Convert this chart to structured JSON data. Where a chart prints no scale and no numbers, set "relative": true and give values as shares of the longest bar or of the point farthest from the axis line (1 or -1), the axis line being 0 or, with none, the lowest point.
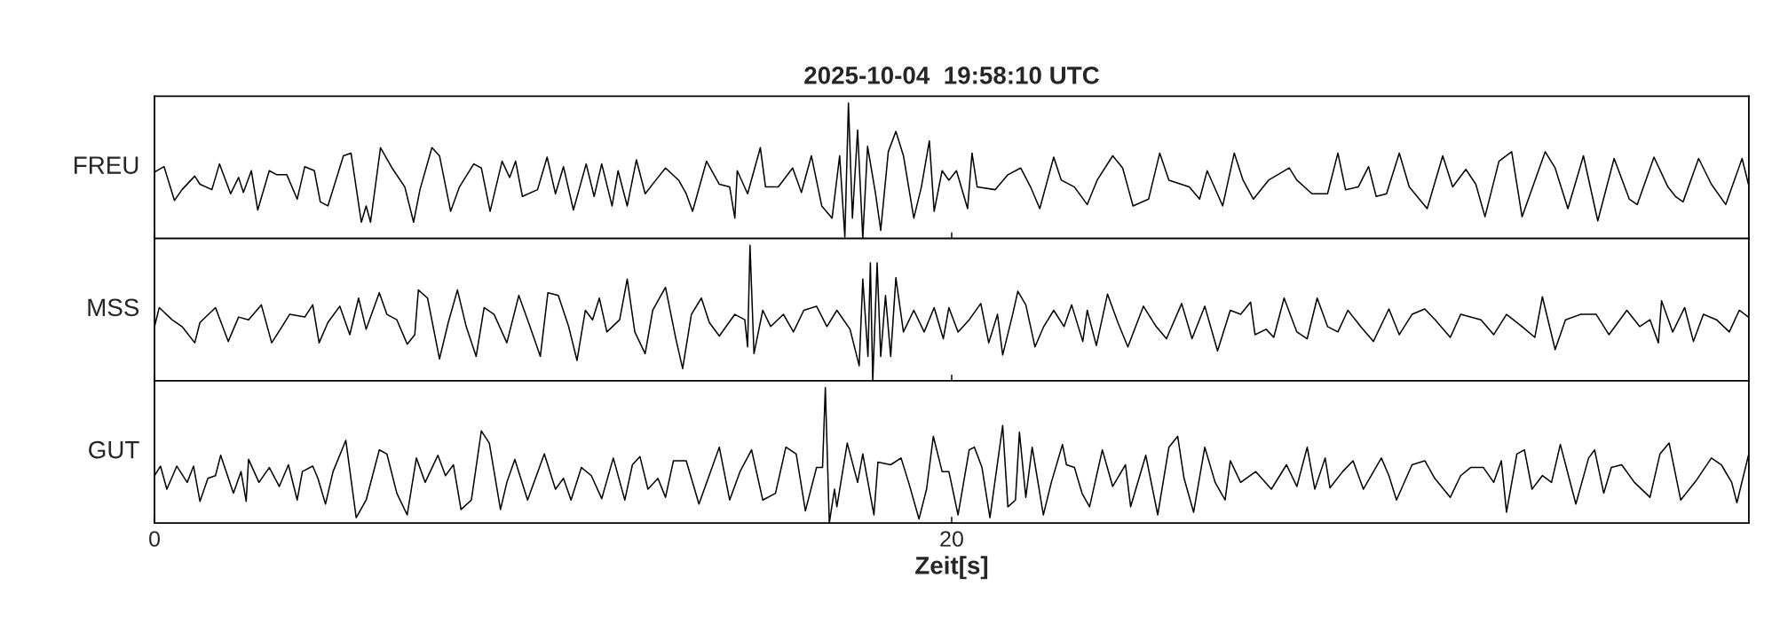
{
  "chart_data": [
    {
      "type": "line",
      "title": "2025-10-04  19:58:10 UTC",
      "ylabel": "FREU",
      "relative": true,
      "xlim": [
        0,
        40
      ],
      "xticks": [
        0,
        20
      ],
      "tick_labels": false,
      "color": "#000000",
      "x": [
        0.0,
        0.24,
        0.5,
        0.69,
        1.01,
        1.14,
        1.44,
        1.63,
        1.91,
        2.11,
        2.23,
        2.43,
        2.59,
        2.88,
        3.07,
        3.32,
        3.58,
        3.77,
        4.01,
        4.16,
        4.35,
        4.74,
        4.93,
        5.19,
        5.31,
        5.42,
        5.67,
        5.96,
        6.28,
        6.5,
        6.66,
        6.96,
        7.15,
        7.43,
        7.65,
        8.01,
        8.2,
        8.42,
        8.72,
        8.91,
        9.06,
        9.23,
        9.61,
        9.85,
        10.06,
        10.26,
        10.51,
        10.83,
        11.03,
        11.22,
        11.48,
        11.63,
        11.86,
        12.09,
        12.31,
        12.63,
        12.82,
        13.15,
        13.34,
        13.5,
        13.85,
        14.17,
        14.43,
        14.56,
        14.62,
        14.88,
        15.2,
        15.33,
        15.65,
        16.01,
        16.23,
        16.48,
        16.74,
        17.0,
        17.19,
        17.32,
        17.41,
        17.51,
        17.64,
        17.77,
        17.89,
        18.09,
        18.22,
        18.41,
        18.6,
        18.79,
        19.05,
        19.24,
        19.44,
        19.56,
        19.76,
        19.93,
        20.12,
        20.4,
        20.51,
        20.64,
        21.09,
        21.41,
        21.73,
        21.98,
        22.21,
        22.56,
        22.75,
        23.08,
        23.4,
        23.65,
        24.04,
        24.29,
        24.55,
        24.94,
        25.22,
        25.45,
        25.96,
        26.22,
        26.41,
        26.8,
        27.09,
        27.31,
        27.57,
        27.95,
        28.47,
        28.66,
        29.04,
        29.43,
        29.69,
        29.88,
        30.2,
        30.46,
        30.65,
        30.91,
        31.23,
        31.48,
        31.93,
        32.32,
        32.57,
        32.9,
        33.15,
        33.38,
        33.73,
        34.05,
        34.31,
        34.89,
        35.14,
        35.46,
        35.85,
        36.21,
        36.62,
        37.0,
        37.2,
        37.62,
        37.97,
        38.16,
        38.35,
        38.74,
        39.06,
        39.42,
        39.83,
        39.99
      ],
      "values": [
        0.49,
        0.53,
        0.28,
        0.36,
        0.46,
        0.4,
        0.36,
        0.55,
        0.33,
        0.45,
        0.34,
        0.5,
        0.21,
        0.5,
        0.47,
        0.47,
        0.29,
        0.53,
        0.5,
        0.27,
        0.24,
        0.61,
        0.63,
        0.12,
        0.24,
        0.12,
        0.67,
        0.52,
        0.38,
        0.12,
        0.36,
        0.67,
        0.61,
        0.2,
        0.38,
        0.55,
        0.52,
        0.2,
        0.57,
        0.45,
        0.57,
        0.31,
        0.36,
        0.6,
        0.33,
        0.53,
        0.21,
        0.55,
        0.31,
        0.55,
        0.24,
        0.5,
        0.24,
        0.58,
        0.33,
        0.45,
        0.52,
        0.43,
        0.33,
        0.2,
        0.57,
        0.4,
        0.38,
        0.15,
        0.5,
        0.33,
        0.67,
        0.38,
        0.38,
        0.52,
        0.34,
        0.61,
        0.24,
        0.15,
        0.61,
        0.01,
        1.0,
        0.15,
        0.8,
        0.0,
        0.68,
        0.33,
        0.06,
        0.64,
        0.79,
        0.61,
        0.15,
        0.38,
        0.72,
        0.2,
        0.5,
        0.43,
        0.5,
        0.22,
        0.63,
        0.38,
        0.36,
        0.47,
        0.52,
        0.38,
        0.22,
        0.6,
        0.43,
        0.38,
        0.25,
        0.43,
        0.61,
        0.52,
        0.24,
        0.29,
        0.63,
        0.43,
        0.38,
        0.29,
        0.5,
        0.24,
        0.63,
        0.43,
        0.29,
        0.43,
        0.52,
        0.43,
        0.33,
        0.33,
        0.63,
        0.36,
        0.38,
        0.53,
        0.31,
        0.33,
        0.63,
        0.38,
        0.22,
        0.61,
        0.38,
        0.51,
        0.4,
        0.16,
        0.57,
        0.64,
        0.16,
        0.64,
        0.52,
        0.22,
        0.61,
        0.13,
        0.59,
        0.29,
        0.25,
        0.6,
        0.38,
        0.31,
        0.27,
        0.59,
        0.4,
        0.25,
        0.59,
        0.4
      ]
    },
    {
      "type": "line",
      "ylabel": "MSS",
      "relative": true,
      "xlim": [
        0,
        40
      ],
      "xticks": [
        0,
        20
      ],
      "tick_labels": false,
      "color": "#000000",
      "x": [
        0.0,
        0.12,
        0.44,
        0.69,
        1.01,
        1.14,
        1.53,
        1.85,
        2.11,
        2.36,
        2.68,
        2.94,
        3.2,
        3.39,
        3.77,
        3.97,
        4.13,
        4.35,
        4.65,
        4.9,
        5.12,
        5.31,
        5.64,
        5.83,
        6.08,
        6.34,
        6.53,
        6.62,
        6.85,
        7.15,
        7.37,
        7.6,
        7.82,
        8.07,
        8.27,
        8.52,
        8.84,
        9.14,
        9.42,
        9.68,
        9.87,
        10.13,
        10.39,
        10.6,
        10.81,
        10.99,
        11.16,
        11.35,
        11.67,
        11.86,
        12.05,
        12.31,
        12.5,
        12.82,
        13.08,
        13.25,
        13.47,
        13.72,
        13.92,
        14.17,
        14.56,
        14.81,
        14.88,
        14.94,
        15.04,
        15.26,
        15.46,
        15.78,
        16.03,
        16.29,
        16.61,
        16.87,
        17.12,
        17.45,
        17.68,
        17.77,
        17.9,
        17.96,
        18.02,
        18.13,
        18.22,
        18.34,
        18.47,
        18.6,
        18.79,
        19.05,
        19.31,
        19.56,
        19.79,
        19.93,
        20.16,
        20.44,
        20.73,
        20.93,
        21.15,
        21.28,
        21.53,
        21.66,
        21.86,
        22.09,
        22.31,
        22.56,
        22.82,
        23.01,
        23.29,
        23.4,
        23.63,
        23.91,
        24.17,
        24.42,
        24.81,
        25.13,
        25.39,
        25.77,
        26.03,
        26.35,
        26.67,
        26.99,
        27.25,
        27.5,
        27.61,
        27.89,
        28.08,
        28.34,
        28.66,
        28.92,
        29.17,
        29.43,
        29.69,
        29.94,
        30.26,
        30.58,
        30.97,
        31.23,
        31.55,
        31.87,
        32.13,
        32.51,
        32.77,
        33.28,
        33.6,
        33.92,
        34.31,
        34.63,
        34.82,
        35.14,
        35.4,
        35.78,
        36.17,
        36.49,
        36.94,
        37.26,
        37.52,
        37.73,
        37.81,
        38.09,
        38.39,
        38.61,
        38.86,
        39.19,
        39.51,
        39.76,
        39.99
      ],
      "values": [
        0.4,
        0.54,
        0.45,
        0.4,
        0.28,
        0.43,
        0.54,
        0.29,
        0.47,
        0.45,
        0.56,
        0.28,
        0.4,
        0.49,
        0.47,
        0.56,
        0.28,
        0.43,
        0.55,
        0.34,
        0.61,
        0.38,
        0.65,
        0.49,
        0.45,
        0.27,
        0.34,
        0.67,
        0.61,
        0.16,
        0.43,
        0.67,
        0.4,
        0.18,
        0.54,
        0.49,
        0.28,
        0.63,
        0.4,
        0.18,
        0.65,
        0.63,
        0.4,
        0.15,
        0.52,
        0.45,
        0.61,
        0.36,
        0.45,
        0.75,
        0.36,
        0.2,
        0.52,
        0.69,
        0.31,
        0.09,
        0.49,
        0.61,
        0.43,
        0.33,
        0.49,
        0.45,
        0.25,
        1.0,
        0.2,
        0.52,
        0.4,
        0.49,
        0.36,
        0.52,
        0.55,
        0.4,
        0.52,
        0.38,
        0.11,
        0.75,
        0.18,
        0.87,
        0.0,
        0.87,
        0.18,
        0.63,
        0.18,
        0.76,
        0.36,
        0.52,
        0.36,
        0.54,
        0.31,
        0.54,
        0.36,
        0.45,
        0.57,
        0.28,
        0.49,
        0.19,
        0.49,
        0.66,
        0.56,
        0.25,
        0.4,
        0.52,
        0.4,
        0.56,
        0.29,
        0.52,
        0.26,
        0.64,
        0.43,
        0.25,
        0.55,
        0.4,
        0.31,
        0.57,
        0.31,
        0.55,
        0.22,
        0.52,
        0.49,
        0.58,
        0.34,
        0.38,
        0.32,
        0.61,
        0.36,
        0.31,
        0.61,
        0.4,
        0.36,
        0.52,
        0.4,
        0.29,
        0.53,
        0.34,
        0.49,
        0.53,
        0.45,
        0.32,
        0.49,
        0.45,
        0.34,
        0.49,
        0.4,
        0.32,
        0.62,
        0.23,
        0.45,
        0.49,
        0.49,
        0.34,
        0.52,
        0.4,
        0.45,
        0.28,
        0.59,
        0.36,
        0.54,
        0.29,
        0.49,
        0.45,
        0.36,
        0.52,
        0.47
      ]
    },
    {
      "type": "line",
      "ylabel": "GUT",
      "xlabel": "Zeit[s]",
      "relative": true,
      "xlim": [
        0,
        40
      ],
      "xticks": [
        0,
        20
      ],
      "tick_labels": "x",
      "color": "#000000",
      "x": [
        0.0,
        0.15,
        0.31,
        0.56,
        0.82,
        0.98,
        1.14,
        1.34,
        1.53,
        1.66,
        1.98,
        2.17,
        2.3,
        2.36,
        2.62,
        2.88,
        3.13,
        3.36,
        3.58,
        3.71,
        3.97,
        4.1,
        4.29,
        4.48,
        4.8,
        5.06,
        5.31,
        5.64,
        5.83,
        6.08,
        6.34,
        6.57,
        6.79,
        7.11,
        7.3,
        7.5,
        7.69,
        7.95,
        8.2,
        8.4,
        8.68,
        8.84,
        9.04,
        9.36,
        9.78,
        10.06,
        10.26,
        10.45,
        10.71,
        10.96,
        11.22,
        11.51,
        11.8,
        11.99,
        12.18,
        12.38,
        12.63,
        12.82,
        13.02,
        13.34,
        13.66,
        14.17,
        14.43,
        14.69,
        14.98,
        15.26,
        15.58,
        15.84,
        16.1,
        16.33,
        16.61,
        16.76,
        16.83,
        16.93,
        17.06,
        17.12,
        17.38,
        17.64,
        17.77,
        18.05,
        18.15,
        18.47,
        18.73,
        18.92,
        19.18,
        19.37,
        19.54,
        19.76,
        19.93,
        20.16,
        20.44,
        20.57,
        20.76,
        20.96,
        21.28,
        21.41,
        21.6,
        21.7,
        21.86,
        22.02,
        22.3,
        22.5,
        22.78,
        22.88,
        23.08,
        23.27,
        23.46,
        23.78,
        24.04,
        24.36,
        24.49,
        24.87,
        25.17,
        25.45,
        25.67,
        25.83,
        26.07,
        26.35,
        26.61,
        26.86,
        26.99,
        27.25,
        27.63,
        28.02,
        28.4,
        28.66,
        28.92,
        29.11,
        29.37,
        29.49,
        29.81,
        30.07,
        30.33,
        30.78,
        30.97,
        31.16,
        31.55,
        31.87,
        32.12,
        32.51,
        32.77,
        33.02,
        33.34,
        33.6,
        33.79,
        33.92,
        34.18,
        34.37,
        34.56,
        34.82,
        35.05,
        35.27,
        35.66,
        35.98,
        36.13,
        36.36,
        36.55,
        36.81,
        37.13,
        37.52,
        37.77,
        38.0,
        38.29,
        38.67,
        39.06,
        39.31,
        39.57,
        39.7,
        39.99
      ],
      "values": [
        0.35,
        0.42,
        0.25,
        0.42,
        0.3,
        0.42,
        0.16,
        0.33,
        0.35,
        0.5,
        0.22,
        0.38,
        0.16,
        0.47,
        0.3,
        0.41,
        0.27,
        0.43,
        0.17,
        0.38,
        0.42,
        0.33,
        0.14,
        0.38,
        0.61,
        0.04,
        0.17,
        0.54,
        0.51,
        0.22,
        0.06,
        0.48,
        0.3,
        0.5,
        0.35,
        0.43,
        0.1,
        0.17,
        0.68,
        0.59,
        0.1,
        0.3,
        0.47,
        0.17,
        0.51,
        0.25,
        0.33,
        0.17,
        0.41,
        0.35,
        0.18,
        0.48,
        0.17,
        0.43,
        0.49,
        0.25,
        0.33,
        0.19,
        0.46,
        0.46,
        0.14,
        0.56,
        0.17,
        0.38,
        0.54,
        0.17,
        0.22,
        0.56,
        0.51,
        0.09,
        0.41,
        0.41,
        1.0,
        0.0,
        0.25,
        0.12,
        0.59,
        0.3,
        0.51,
        0.06,
        0.45,
        0.43,
        0.48,
        0.3,
        0.03,
        0.25,
        0.64,
        0.38,
        0.38,
        0.06,
        0.54,
        0.56,
        0.41,
        0.04,
        0.72,
        0.12,
        0.17,
        0.67,
        0.19,
        0.56,
        0.06,
        0.3,
        0.58,
        0.43,
        0.41,
        0.22,
        0.12,
        0.54,
        0.27,
        0.43,
        0.12,
        0.5,
        0.06,
        0.56,
        0.64,
        0.33,
        0.08,
        0.56,
        0.3,
        0.17,
        0.46,
        0.3,
        0.38,
        0.25,
        0.43,
        0.27,
        0.56,
        0.25,
        0.48,
        0.26,
        0.38,
        0.46,
        0.25,
        0.48,
        0.35,
        0.17,
        0.43,
        0.46,
        0.33,
        0.19,
        0.35,
        0.41,
        0.41,
        0.3,
        0.46,
        0.08,
        0.51,
        0.54,
        0.25,
        0.35,
        0.3,
        0.58,
        0.14,
        0.48,
        0.54,
        0.22,
        0.41,
        0.43,
        0.3,
        0.19,
        0.51,
        0.59,
        0.17,
        0.31,
        0.48,
        0.43,
        0.3,
        0.15,
        0.5
      ]
    }
  ]
}
